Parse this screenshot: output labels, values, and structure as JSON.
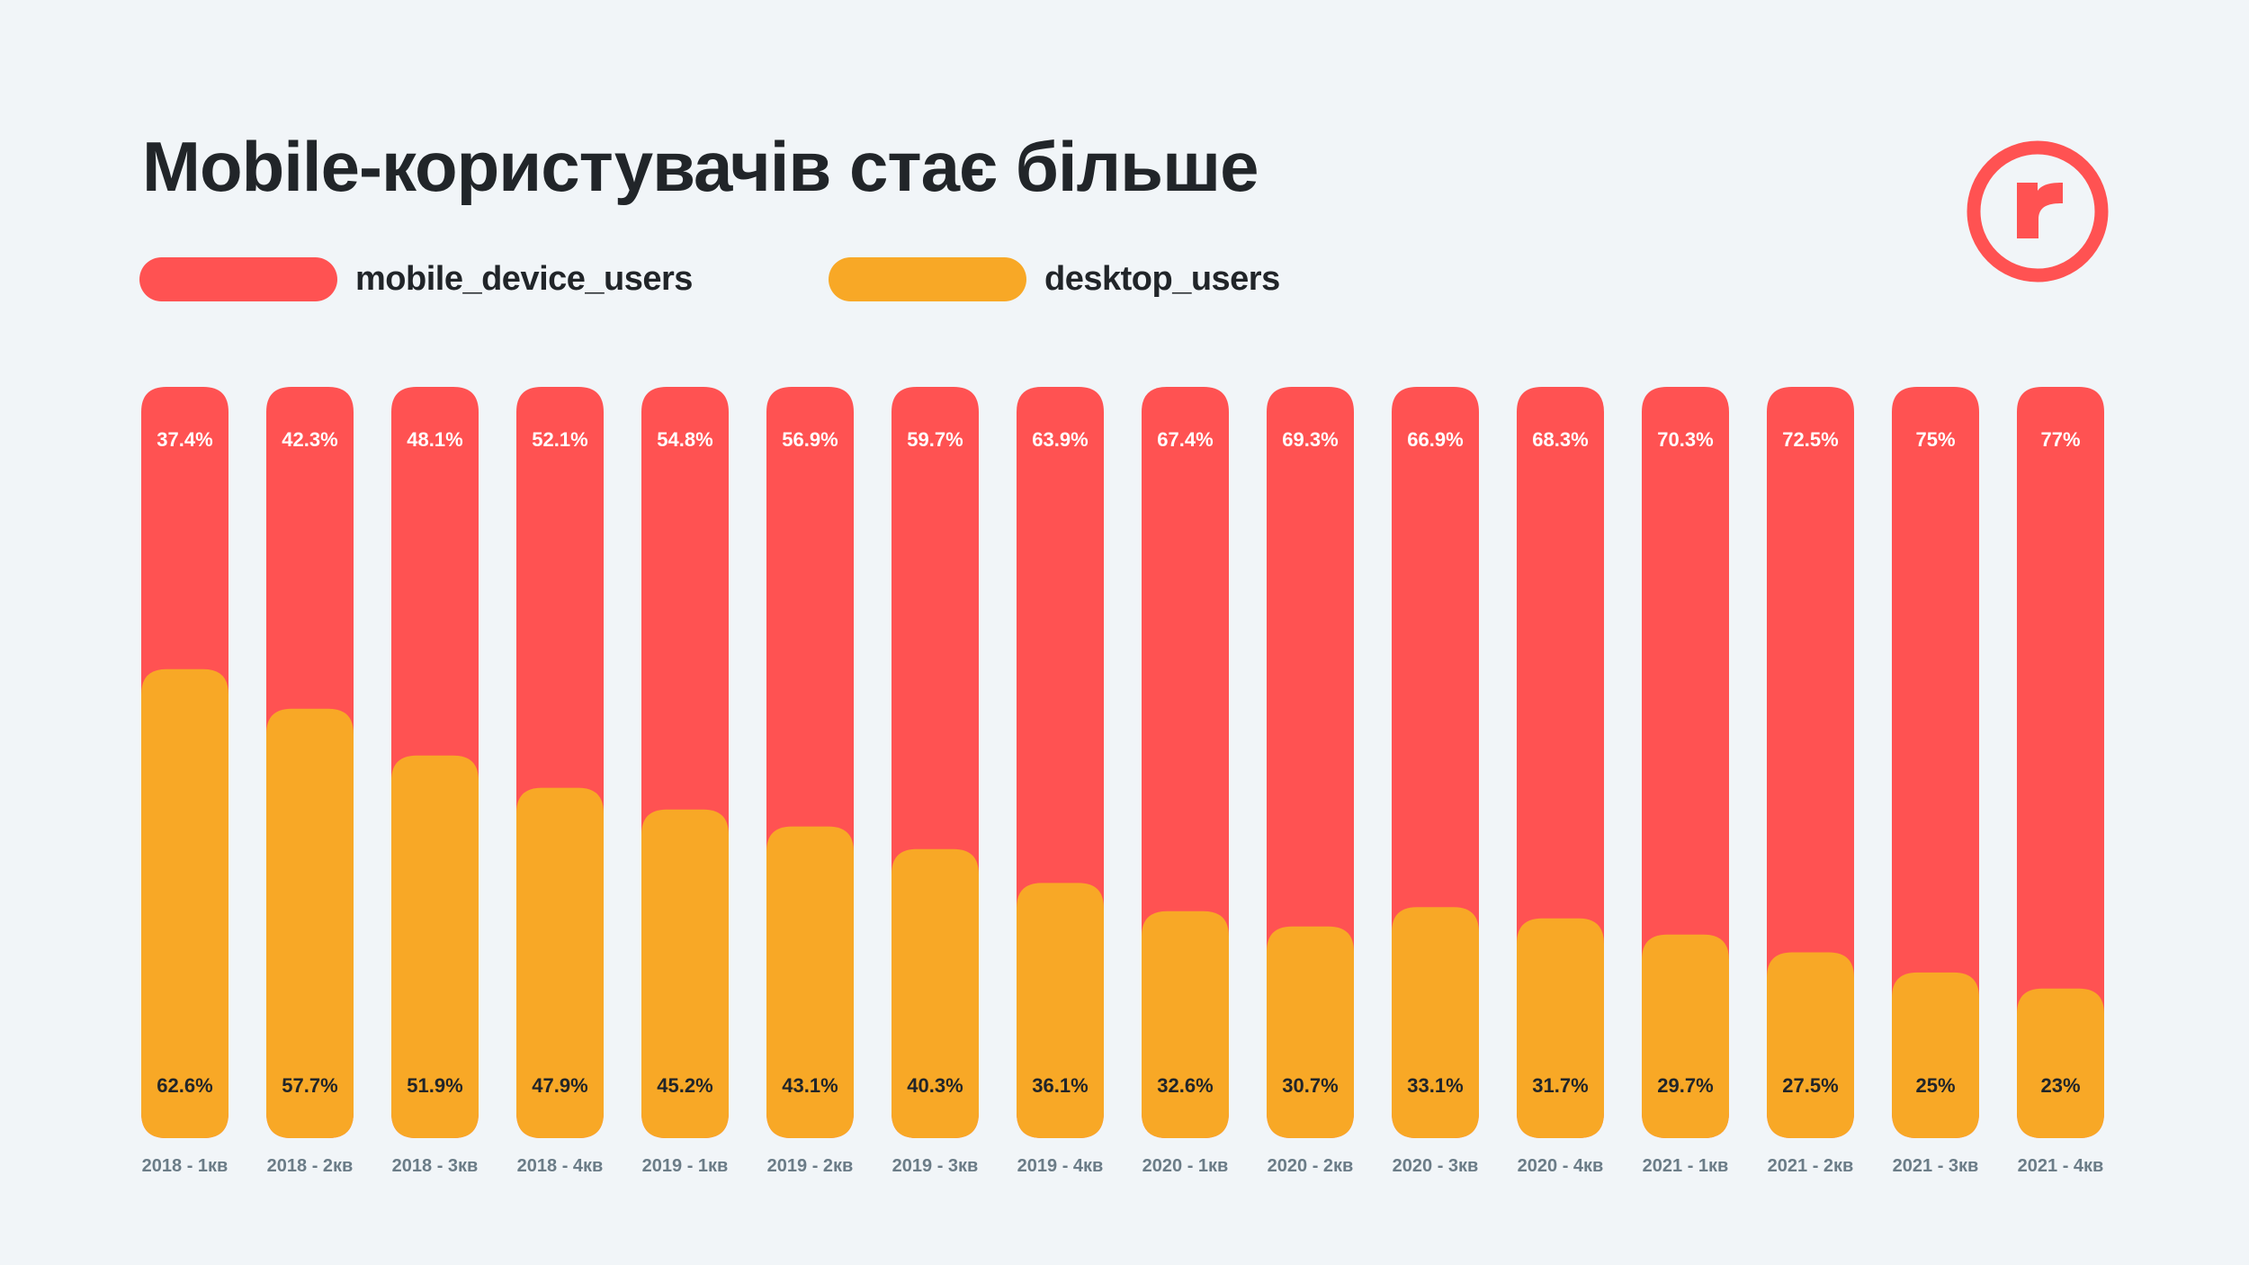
{
  "colors": {
    "background": "#f1f5f8",
    "mobile": "#ff5252",
    "desktop": "#f8a826",
    "text_dark": "#212529",
    "text_gray": "#6b7c87",
    "label_light": "#ffffff"
  },
  "logo": {
    "icon": "r-circle-logo-icon",
    "letter": "r"
  },
  "chart_data": {
    "type": "bar",
    "stacked": true,
    "orientation": "vertical",
    "title": "Mobile-користувачів стає більше",
    "xlabel": "",
    "ylabel": "",
    "ylim": [
      0,
      100
    ],
    "grid": false,
    "legend_position": "top-left",
    "categories": [
      "2018 - 1кв",
      "2018 - 2кв",
      "2018 - 3кв",
      "2018 - 4кв",
      "2019 - 1кв",
      "2019 - 2кв",
      "2019 - 3кв",
      "2019 - 4кв",
      "2020 - 1кв",
      "2020 - 2кв",
      "2020 - 3кв",
      "2020 - 4кв",
      "2021 - 1кв",
      "2021 - 2кв",
      "2021 - 3кв",
      "2021 - 4кв"
    ],
    "series": [
      {
        "name": "mobile_device_users",
        "color": "#ff5252",
        "values": [
          37.4,
          42.3,
          48.1,
          52.1,
          54.8,
          56.9,
          59.7,
          63.9,
          67.4,
          69.3,
          66.9,
          68.3,
          70.3,
          72.5,
          75,
          77
        ],
        "labels": [
          "37.4%",
          "42.3%",
          "48.1%",
          "52.1%",
          "54.8%",
          "56.9%",
          "59.7%",
          "63.9%",
          "67.4%",
          "69.3%",
          "66.9%",
          "68.3%",
          "70.3%",
          "72.5%",
          "75%",
          "77%"
        ]
      },
      {
        "name": "desktop_users",
        "color": "#f8a826",
        "values": [
          62.6,
          57.7,
          51.9,
          47.9,
          45.2,
          43.1,
          40.3,
          36.1,
          32.6,
          30.7,
          33.1,
          31.7,
          29.7,
          27.5,
          25,
          23
        ],
        "labels": [
          "62.6%",
          "57.7%",
          "51.9%",
          "47.9%",
          "45.2%",
          "43.1%",
          "40.3%",
          "36.1%",
          "32.6%",
          "30.7%",
          "33.1%",
          "31.7%",
          "29.7%",
          "27.5%",
          "25%",
          "23%"
        ]
      }
    ]
  }
}
